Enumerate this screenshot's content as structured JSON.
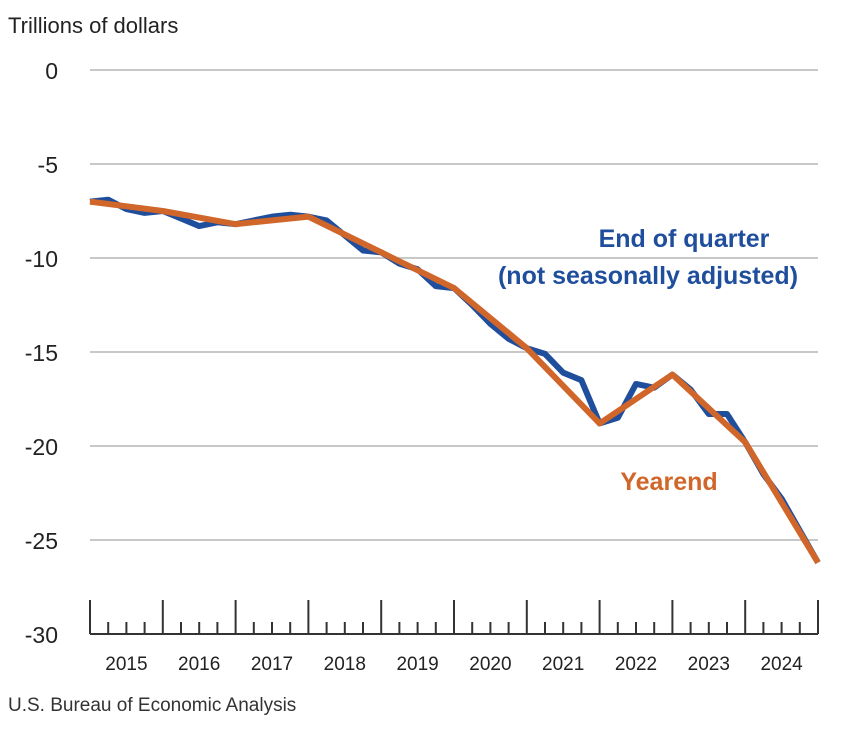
{
  "chart_data": {
    "type": "line",
    "title": "",
    "ylabel": "Trillions of dollars",
    "xlabel": "",
    "ylim": [
      -30,
      0
    ],
    "yticks": [
      0,
      -5,
      -10,
      -15,
      -20,
      -25,
      -30
    ],
    "year_labels": [
      "2015",
      "2016",
      "2017",
      "2018",
      "2019",
      "2020",
      "2021",
      "2022",
      "2023",
      "2024"
    ],
    "grid": true,
    "series": [
      {
        "name": "End of quarter (not seasonally adjusted)",
        "label_line1": "End of quarter",
        "label_line2": "(not seasonally adjusted)",
        "color": "#1f4e9c",
        "x": [
          "2014Q4",
          "2015Q1",
          "2015Q2",
          "2015Q3",
          "2015Q4",
          "2016Q1",
          "2016Q2",
          "2016Q3",
          "2016Q4",
          "2017Q1",
          "2017Q2",
          "2017Q3",
          "2017Q4",
          "2018Q1",
          "2018Q2",
          "2018Q3",
          "2018Q4",
          "2019Q1",
          "2019Q2",
          "2019Q3",
          "2019Q4",
          "2020Q1",
          "2020Q2",
          "2020Q3",
          "2020Q4",
          "2021Q1",
          "2021Q2",
          "2021Q3",
          "2021Q4",
          "2022Q1",
          "2022Q2",
          "2022Q3",
          "2022Q4",
          "2023Q1",
          "2023Q2",
          "2023Q3",
          "2023Q4",
          "2024Q1",
          "2024Q2",
          "2024Q3",
          "2024Q4"
        ],
        "values": [
          -7.0,
          -6.9,
          -7.4,
          -7.6,
          -7.5,
          -7.9,
          -8.3,
          -8.1,
          -8.2,
          -8.0,
          -7.8,
          -7.7,
          -7.8,
          -8.0,
          -8.8,
          -9.6,
          -9.7,
          -10.3,
          -10.6,
          -11.5,
          -11.6,
          -12.5,
          -13.5,
          -14.3,
          -14.8,
          -15.1,
          -16.1,
          -16.5,
          -18.8,
          -18.5,
          -16.7,
          -16.9,
          -16.2,
          -17.0,
          -18.3,
          -18.3,
          -19.8,
          -21.5,
          -22.8,
          -24.5,
          -26.2
        ]
      },
      {
        "name": "Yearend",
        "label_line1": "Yearend",
        "color": "#d0662a",
        "x": [
          "2014",
          "2015",
          "2016",
          "2017",
          "2018",
          "2019",
          "2020",
          "2021",
          "2022",
          "2023",
          "2024"
        ],
        "values": [
          -7.0,
          -7.5,
          -8.2,
          -7.8,
          -9.7,
          -11.6,
          -14.8,
          -18.8,
          -16.2,
          -19.8,
          -26.2
        ]
      }
    ],
    "source": "U.S. Bureau of Economic Analysis"
  }
}
